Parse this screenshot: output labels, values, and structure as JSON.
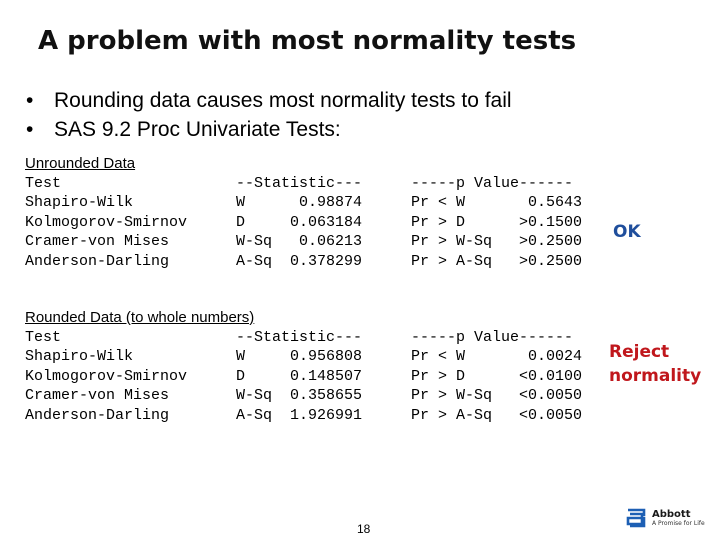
{
  "title": "A problem with most normality tests",
  "bullets": [
    "Rounding data causes most normality tests to fail",
    "SAS 9.2 Proc Univariate Tests:"
  ],
  "unrounded": {
    "heading": "Unrounded Data",
    "test_lines": [
      "Test",
      "Shapiro-Wilk",
      "Kolmogorov-Smirnov",
      "Cramer-von Mises",
      "Anderson-Darling"
    ],
    "stat_lines": [
      "--Statistic---",
      "W      0.98874",
      "D     0.063184",
      "W-Sq   0.06213",
      "A-Sq  0.378299"
    ],
    "pvalue_lines": [
      "-----p Value------",
      "Pr < W       0.5643",
      "Pr > D      >0.1500",
      "Pr > W-Sq   >0.2500",
      "Pr > A-Sq   >0.2500"
    ],
    "verdict": "OK",
    "verdict_color": "#1f4e9c"
  },
  "rounded": {
    "heading": "Rounded Data (to whole numbers)",
    "test_lines": [
      "Test",
      "Shapiro-Wilk",
      "Kolmogorov-Smirnov",
      "Cramer-von Mises",
      "Anderson-Darling"
    ],
    "stat_lines": [
      "--Statistic---",
      "W     0.956808",
      "D     0.148507",
      "W-Sq  0.358655",
      "A-Sq  1.926991"
    ],
    "pvalue_lines": [
      "-----p Value------",
      "Pr < W       0.0024",
      "Pr > D      <0.0100",
      "Pr > W-Sq   <0.0050",
      "Pr > A-Sq   <0.0050"
    ],
    "verdict_line1": "Reject",
    "verdict_line2": "normality",
    "verdict_color": "#c0171c"
  },
  "page_number": "18",
  "logo": {
    "name": "Abbott",
    "tagline": "A Promise for Life",
    "icon": "abbott-logo-icon",
    "color": "#1d5fb4"
  }
}
